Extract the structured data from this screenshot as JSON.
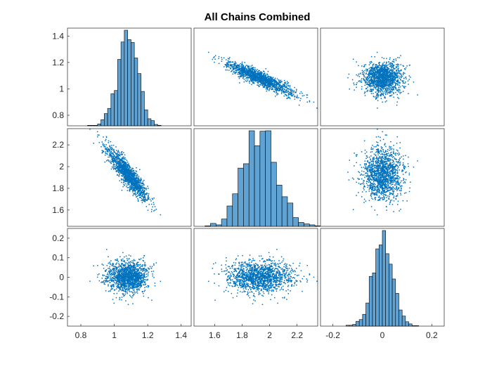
{
  "title": "All Chains Combined",
  "colors": {
    "marker": "#0072bd",
    "bar_fill": "#5fa2d4",
    "bar_edge": "#000000",
    "axes": "#262626",
    "background": "#ffffff"
  },
  "chart_data": {
    "type": "scatter-matrix",
    "title": "All Chains Combined",
    "variables": [
      {
        "name": "",
        "range": [
          0.72,
          1.46
        ],
        "ticks": [
          "0.8",
          "1",
          "1.2",
          "1.4"
        ],
        "tick_values": [
          0.8,
          1.0,
          1.2,
          1.4
        ],
        "mean": 1.08,
        "sd": 0.06
      },
      {
        "name": "",
        "range": [
          1.45,
          2.35
        ],
        "ticks": [
          "1.6",
          "1.8",
          "2",
          "2.2"
        ],
        "tick_values": [
          1.6,
          1.8,
          2.0,
          2.2
        ],
        "mean": 1.93,
        "sd": 0.12
      },
      {
        "name": "",
        "range": [
          -0.25,
          0.25
        ],
        "ticks": [
          "-0.2",
          "-0.1",
          "0",
          "0.1",
          "0.2"
        ],
        "tick_values": [
          -0.2,
          -0.1,
          0.0,
          0.1,
          0.2
        ],
        "mean": 0.0,
        "sd": 0.04
      }
    ],
    "x_tick_labels": [
      [
        "0.8",
        "1",
        "1.2",
        "1.4"
      ],
      [
        "1.6",
        "1.8",
        "2",
        "2.2"
      ],
      [
        "-0.2",
        "0",
        "0.2"
      ]
    ],
    "x_tick_values": [
      [
        0.8,
        1.0,
        1.2,
        1.4
      ],
      [
        1.6,
        1.8,
        2.0,
        2.2
      ],
      [
        -0.2,
        0.0,
        0.2
      ]
    ],
    "correlations": [
      [
        1.0,
        -0.9,
        0.0
      ],
      [
        -0.9,
        1.0,
        0.0
      ],
      [
        0.0,
        0.0,
        1.0
      ]
    ],
    "diagonal": "histogram",
    "off_diagonal": "scatter",
    "grid": false
  }
}
